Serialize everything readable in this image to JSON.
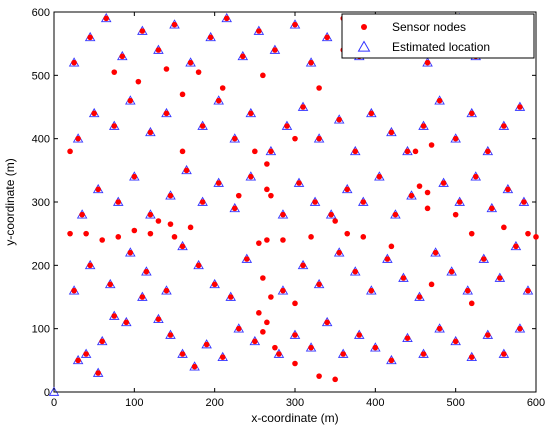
{
  "chart_data": {
    "type": "scatter",
    "xlabel": "x-coordinate (m)",
    "ylabel": "y-coordinate (m)",
    "xlim": [
      0,
      600
    ],
    "ylim": [
      0,
      600
    ],
    "xticks": [
      0,
      100,
      200,
      300,
      400,
      500,
      600
    ],
    "yticks": [
      0,
      100,
      200,
      300,
      400,
      500,
      600
    ],
    "grid": false,
    "legend_position": "top-right",
    "series": [
      {
        "name": "Sensor nodes",
        "marker": "dot",
        "color": "#ff0000",
        "points": [
          [
            30,
            50
          ],
          [
            40,
            60
          ],
          [
            55,
            30
          ],
          [
            60,
            80
          ],
          [
            75,
            120
          ],
          [
            90,
            110
          ],
          [
            110,
            150
          ],
          [
            130,
            115
          ],
          [
            145,
            90
          ],
          [
            160,
            60
          ],
          [
            175,
            40
          ],
          [
            190,
            75
          ],
          [
            210,
            55
          ],
          [
            230,
            100
          ],
          [
            250,
            80
          ],
          [
            265,
            110
          ],
          [
            280,
            60
          ],
          [
            300,
            90
          ],
          [
            320,
            70
          ],
          [
            340,
            110
          ],
          [
            360,
            60
          ],
          [
            380,
            90
          ],
          [
            400,
            70
          ],
          [
            420,
            50
          ],
          [
            440,
            85
          ],
          [
            460,
            60
          ],
          [
            480,
            100
          ],
          [
            500,
            80
          ],
          [
            520,
            55
          ],
          [
            540,
            90
          ],
          [
            560,
            60
          ],
          [
            580,
            100
          ],
          [
            25,
            160
          ],
          [
            45,
            200
          ],
          [
            70,
            170
          ],
          [
            95,
            220
          ],
          [
            115,
            190
          ],
          [
            140,
            160
          ],
          [
            160,
            230
          ],
          [
            180,
            200
          ],
          [
            200,
            170
          ],
          [
            220,
            150
          ],
          [
            240,
            210
          ],
          [
            260,
            180
          ],
          [
            285,
            160
          ],
          [
            310,
            200
          ],
          [
            330,
            170
          ],
          [
            355,
            220
          ],
          [
            375,
            190
          ],
          [
            395,
            160
          ],
          [
            415,
            210
          ],
          [
            435,
            180
          ],
          [
            455,
            150
          ],
          [
            475,
            220
          ],
          [
            495,
            190
          ],
          [
            515,
            160
          ],
          [
            535,
            210
          ],
          [
            555,
            180
          ],
          [
            575,
            230
          ],
          [
            590,
            160
          ],
          [
            35,
            280
          ],
          [
            55,
            320
          ],
          [
            80,
            300
          ],
          [
            100,
            340
          ],
          [
            120,
            280
          ],
          [
            145,
            310
          ],
          [
            165,
            350
          ],
          [
            185,
            300
          ],
          [
            205,
            330
          ],
          [
            225,
            290
          ],
          [
            245,
            340
          ],
          [
            265,
            320
          ],
          [
            285,
            280
          ],
          [
            305,
            330
          ],
          [
            325,
            300
          ],
          [
            345,
            280
          ],
          [
            365,
            320
          ],
          [
            385,
            300
          ],
          [
            405,
            340
          ],
          [
            425,
            280
          ],
          [
            445,
            310
          ],
          [
            465,
            290
          ],
          [
            485,
            330
          ],
          [
            505,
            300
          ],
          [
            525,
            340
          ],
          [
            545,
            290
          ],
          [
            565,
            320
          ],
          [
            585,
            300
          ],
          [
            30,
            400
          ],
          [
            50,
            440
          ],
          [
            75,
            420
          ],
          [
            95,
            460
          ],
          [
            120,
            410
          ],
          [
            140,
            440
          ],
          [
            160,
            380
          ],
          [
            185,
            420
          ],
          [
            205,
            460
          ],
          [
            225,
            400
          ],
          [
            245,
            440
          ],
          [
            270,
            380
          ],
          [
            290,
            420
          ],
          [
            310,
            450
          ],
          [
            330,
            400
          ],
          [
            355,
            430
          ],
          [
            375,
            380
          ],
          [
            395,
            440
          ],
          [
            420,
            410
          ],
          [
            440,
            380
          ],
          [
            460,
            420
          ],
          [
            480,
            460
          ],
          [
            500,
            400
          ],
          [
            520,
            440
          ],
          [
            540,
            380
          ],
          [
            560,
            420
          ],
          [
            580,
            450
          ],
          [
            25,
            520
          ],
          [
            45,
            560
          ],
          [
            65,
            590
          ],
          [
            85,
            530
          ],
          [
            110,
            570
          ],
          [
            130,
            540
          ],
          [
            150,
            580
          ],
          [
            170,
            520
          ],
          [
            195,
            560
          ],
          [
            215,
            590
          ],
          [
            235,
            530
          ],
          [
            255,
            570
          ],
          [
            275,
            540
          ],
          [
            300,
            580
          ],
          [
            320,
            520
          ],
          [
            340,
            560
          ],
          [
            360,
            590
          ],
          [
            380,
            530
          ],
          [
            400,
            570
          ],
          [
            420,
            540
          ],
          [
            445,
            580
          ],
          [
            465,
            520
          ],
          [
            485,
            560
          ],
          [
            505,
            590
          ],
          [
            525,
            530
          ],
          [
            545,
            570
          ],
          [
            570,
            540
          ],
          [
            590,
            580
          ],
          [
            20,
            380
          ],
          [
            75,
            505
          ],
          [
            105,
            490
          ],
          [
            140,
            510
          ],
          [
            160,
            470
          ],
          [
            180,
            505
          ],
          [
            210,
            480
          ],
          [
            250,
            380
          ],
          [
            265,
            360
          ],
          [
            230,
            310
          ],
          [
            270,
            310
          ],
          [
            300,
            400
          ],
          [
            260,
            500
          ],
          [
            330,
            480
          ],
          [
            360,
            540
          ],
          [
            130,
            270
          ],
          [
            145,
            265
          ],
          [
            170,
            260
          ],
          [
            150,
            245
          ],
          [
            120,
            250
          ],
          [
            100,
            255
          ],
          [
            80,
            245
          ],
          [
            60,
            240
          ],
          [
            40,
            250
          ],
          [
            20,
            250
          ],
          [
            255,
            235
          ],
          [
            265,
            240
          ],
          [
            285,
            240
          ],
          [
            320,
            245
          ],
          [
            350,
            270
          ],
          [
            365,
            250
          ],
          [
            385,
            245
          ],
          [
            420,
            230
          ],
          [
            455,
            325
          ],
          [
            465,
            315
          ],
          [
            450,
            380
          ],
          [
            470,
            390
          ],
          [
            500,
            280
          ],
          [
            520,
            250
          ],
          [
            560,
            260
          ],
          [
            590,
            250
          ],
          [
            600,
            245
          ],
          [
            470,
            170
          ],
          [
            520,
            140
          ],
          [
            300,
            140
          ],
          [
            270,
            150
          ],
          [
            255,
            125
          ],
          [
            260,
            95
          ],
          [
            275,
            70
          ],
          [
            300,
            45
          ],
          [
            330,
            25
          ],
          [
            350,
            20
          ]
        ]
      },
      {
        "name": "Estimated location",
        "marker": "triangle-open",
        "color": "#3333ff",
        "points": [
          [
            30,
            50
          ],
          [
            40,
            60
          ],
          [
            55,
            30
          ],
          [
            60,
            80
          ],
          [
            75,
            120
          ],
          [
            90,
            110
          ],
          [
            110,
            150
          ],
          [
            130,
            115
          ],
          [
            145,
            90
          ],
          [
            160,
            60
          ],
          [
            175,
            40
          ],
          [
            190,
            75
          ],
          [
            210,
            55
          ],
          [
            230,
            100
          ],
          [
            250,
            80
          ],
          [
            280,
            60
          ],
          [
            300,
            90
          ],
          [
            320,
            70
          ],
          [
            340,
            110
          ],
          [
            360,
            60
          ],
          [
            380,
            90
          ],
          [
            400,
            70
          ],
          [
            420,
            50
          ],
          [
            440,
            85
          ],
          [
            460,
            60
          ],
          [
            480,
            100
          ],
          [
            500,
            80
          ],
          [
            520,
            55
          ],
          [
            540,
            90
          ],
          [
            560,
            60
          ],
          [
            580,
            100
          ],
          [
            25,
            160
          ],
          [
            45,
            200
          ],
          [
            70,
            170
          ],
          [
            95,
            220
          ],
          [
            115,
            190
          ],
          [
            140,
            160
          ],
          [
            160,
            230
          ],
          [
            180,
            200
          ],
          [
            200,
            170
          ],
          [
            220,
            150
          ],
          [
            240,
            210
          ],
          [
            285,
            160
          ],
          [
            310,
            200
          ],
          [
            330,
            170
          ],
          [
            355,
            220
          ],
          [
            375,
            190
          ],
          [
            395,
            160
          ],
          [
            415,
            210
          ],
          [
            435,
            180
          ],
          [
            455,
            150
          ],
          [
            475,
            220
          ],
          [
            495,
            190
          ],
          [
            515,
            160
          ],
          [
            535,
            210
          ],
          [
            555,
            180
          ],
          [
            575,
            230
          ],
          [
            590,
            160
          ],
          [
            35,
            280
          ],
          [
            55,
            320
          ],
          [
            80,
            300
          ],
          [
            100,
            340
          ],
          [
            120,
            280
          ],
          [
            145,
            310
          ],
          [
            165,
            350
          ],
          [
            185,
            300
          ],
          [
            205,
            330
          ],
          [
            225,
            290
          ],
          [
            245,
            340
          ],
          [
            285,
            280
          ],
          [
            305,
            330
          ],
          [
            325,
            300
          ],
          [
            345,
            280
          ],
          [
            365,
            320
          ],
          [
            385,
            300
          ],
          [
            405,
            340
          ],
          [
            425,
            280
          ],
          [
            445,
            310
          ],
          [
            485,
            330
          ],
          [
            505,
            300
          ],
          [
            525,
            340
          ],
          [
            545,
            290
          ],
          [
            565,
            320
          ],
          [
            585,
            300
          ],
          [
            30,
            400
          ],
          [
            50,
            440
          ],
          [
            75,
            420
          ],
          [
            95,
            460
          ],
          [
            120,
            410
          ],
          [
            140,
            440
          ],
          [
            185,
            420
          ],
          [
            205,
            460
          ],
          [
            225,
            400
          ],
          [
            245,
            440
          ],
          [
            270,
            380
          ],
          [
            290,
            420
          ],
          [
            310,
            450
          ],
          [
            330,
            400
          ],
          [
            355,
            430
          ],
          [
            375,
            380
          ],
          [
            395,
            440
          ],
          [
            420,
            410
          ],
          [
            440,
            380
          ],
          [
            460,
            420
          ],
          [
            480,
            460
          ],
          [
            500,
            400
          ],
          [
            520,
            440
          ],
          [
            540,
            380
          ],
          [
            560,
            420
          ],
          [
            580,
            450
          ],
          [
            25,
            520
          ],
          [
            45,
            560
          ],
          [
            65,
            590
          ],
          [
            85,
            530
          ],
          [
            110,
            570
          ],
          [
            130,
            540
          ],
          [
            150,
            580
          ],
          [
            170,
            520
          ],
          [
            195,
            560
          ],
          [
            215,
            590
          ],
          [
            235,
            530
          ],
          [
            255,
            570
          ],
          [
            275,
            540
          ],
          [
            300,
            580
          ],
          [
            320,
            520
          ],
          [
            340,
            560
          ],
          [
            380,
            530
          ],
          [
            400,
            570
          ],
          [
            420,
            540
          ],
          [
            445,
            580
          ],
          [
            465,
            520
          ],
          [
            485,
            560
          ],
          [
            505,
            590
          ],
          [
            525,
            530
          ],
          [
            545,
            570
          ],
          [
            570,
            540
          ],
          [
            590,
            580
          ],
          [
            0,
            0
          ]
        ]
      }
    ]
  }
}
